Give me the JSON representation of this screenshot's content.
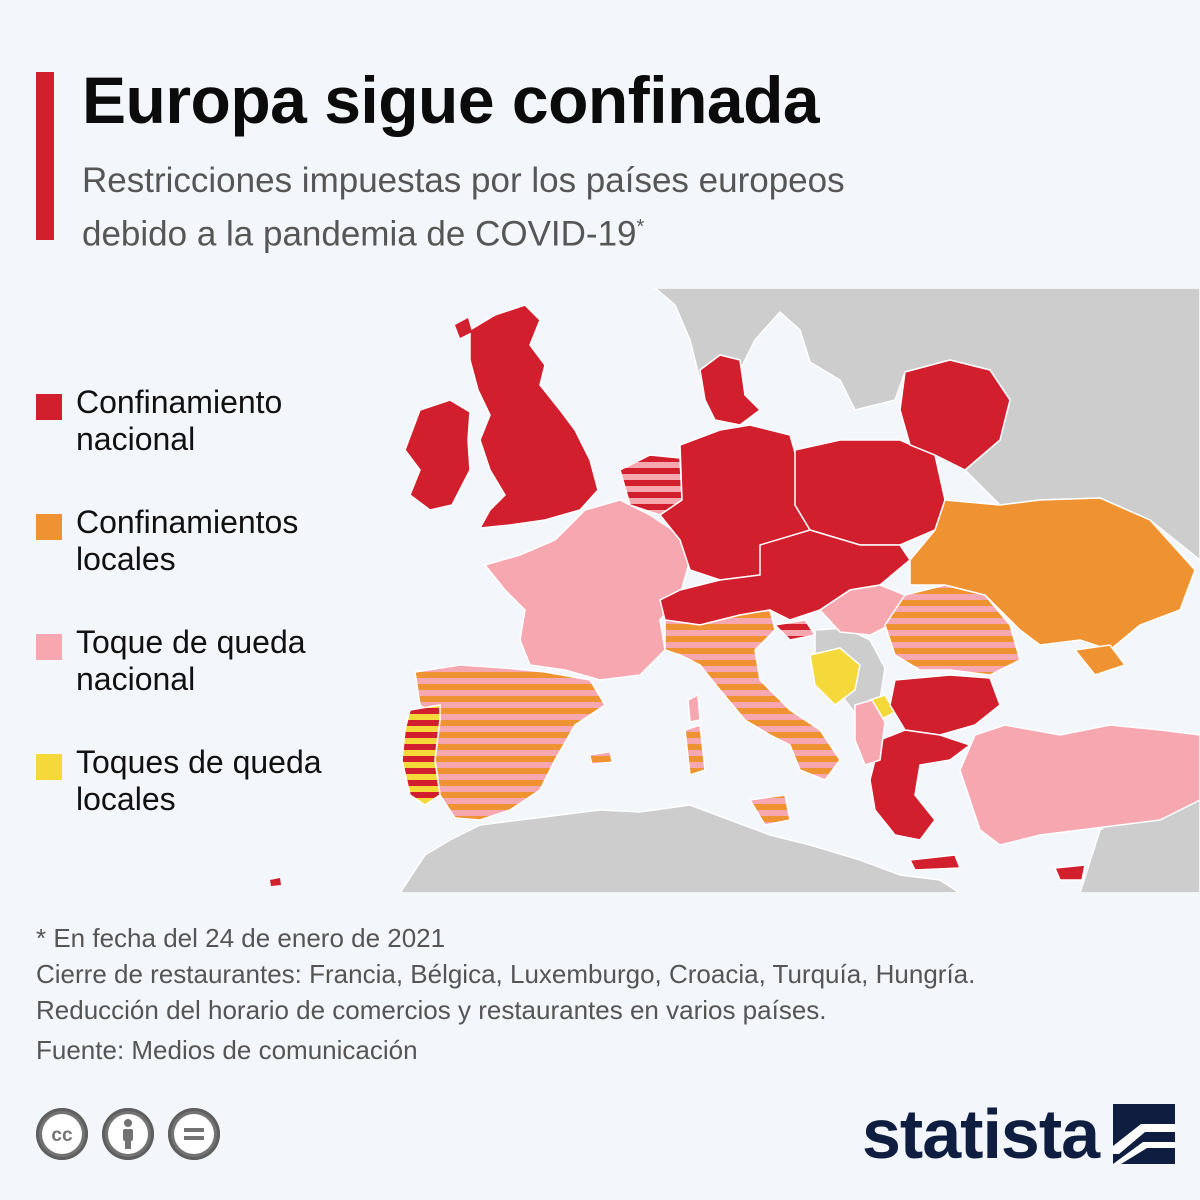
{
  "title": "Europa sigue confinada",
  "subtitle": {
    "line1": "Restricciones impuestas por los países europeos",
    "line2": "debido a la pandemia de COVID-19",
    "marker": "*"
  },
  "colors": {
    "accent": "#d21f2e",
    "national_lockdown": "#d21f2e",
    "local_lockdowns": "#ef9332",
    "national_curfew": "#f7a7b0",
    "local_curfews": "#f5d93a",
    "no_data": "#cdcdcd",
    "sea": "#f3f6fa",
    "brand": "#0f1e40"
  },
  "legend": [
    {
      "key": "national_lockdown",
      "label_line1": "Confinamiento",
      "label_line2": "nacional",
      "color": "#d21f2e"
    },
    {
      "key": "local_lockdowns",
      "label_line1": "Confinamientos",
      "label_line2": "locales",
      "color": "#ef9332"
    },
    {
      "key": "national_curfew",
      "label_line1": "Toque de queda",
      "label_line2": "nacional",
      "color": "#f7a7b0"
    },
    {
      "key": "local_curfews",
      "label_line1": "Toques de queda",
      "label_line2": "locales",
      "color": "#f5d93a"
    }
  ],
  "footer": {
    "note": "* En fecha del 24 de enero de 2021",
    "restaurants": "Cierre de restaurantes: Francia, Bélgica, Luxemburgo, Croacia, Turquía, Hungría.",
    "hours": "Reducción del horario de comercios y restaurantes en varios países.",
    "source": "Fuente: Medios de comunicación"
  },
  "license_icons": [
    "creative-commons-icon",
    "attribution-icon",
    "no-derivatives-icon"
  ],
  "brand": {
    "name": "statista"
  }
}
